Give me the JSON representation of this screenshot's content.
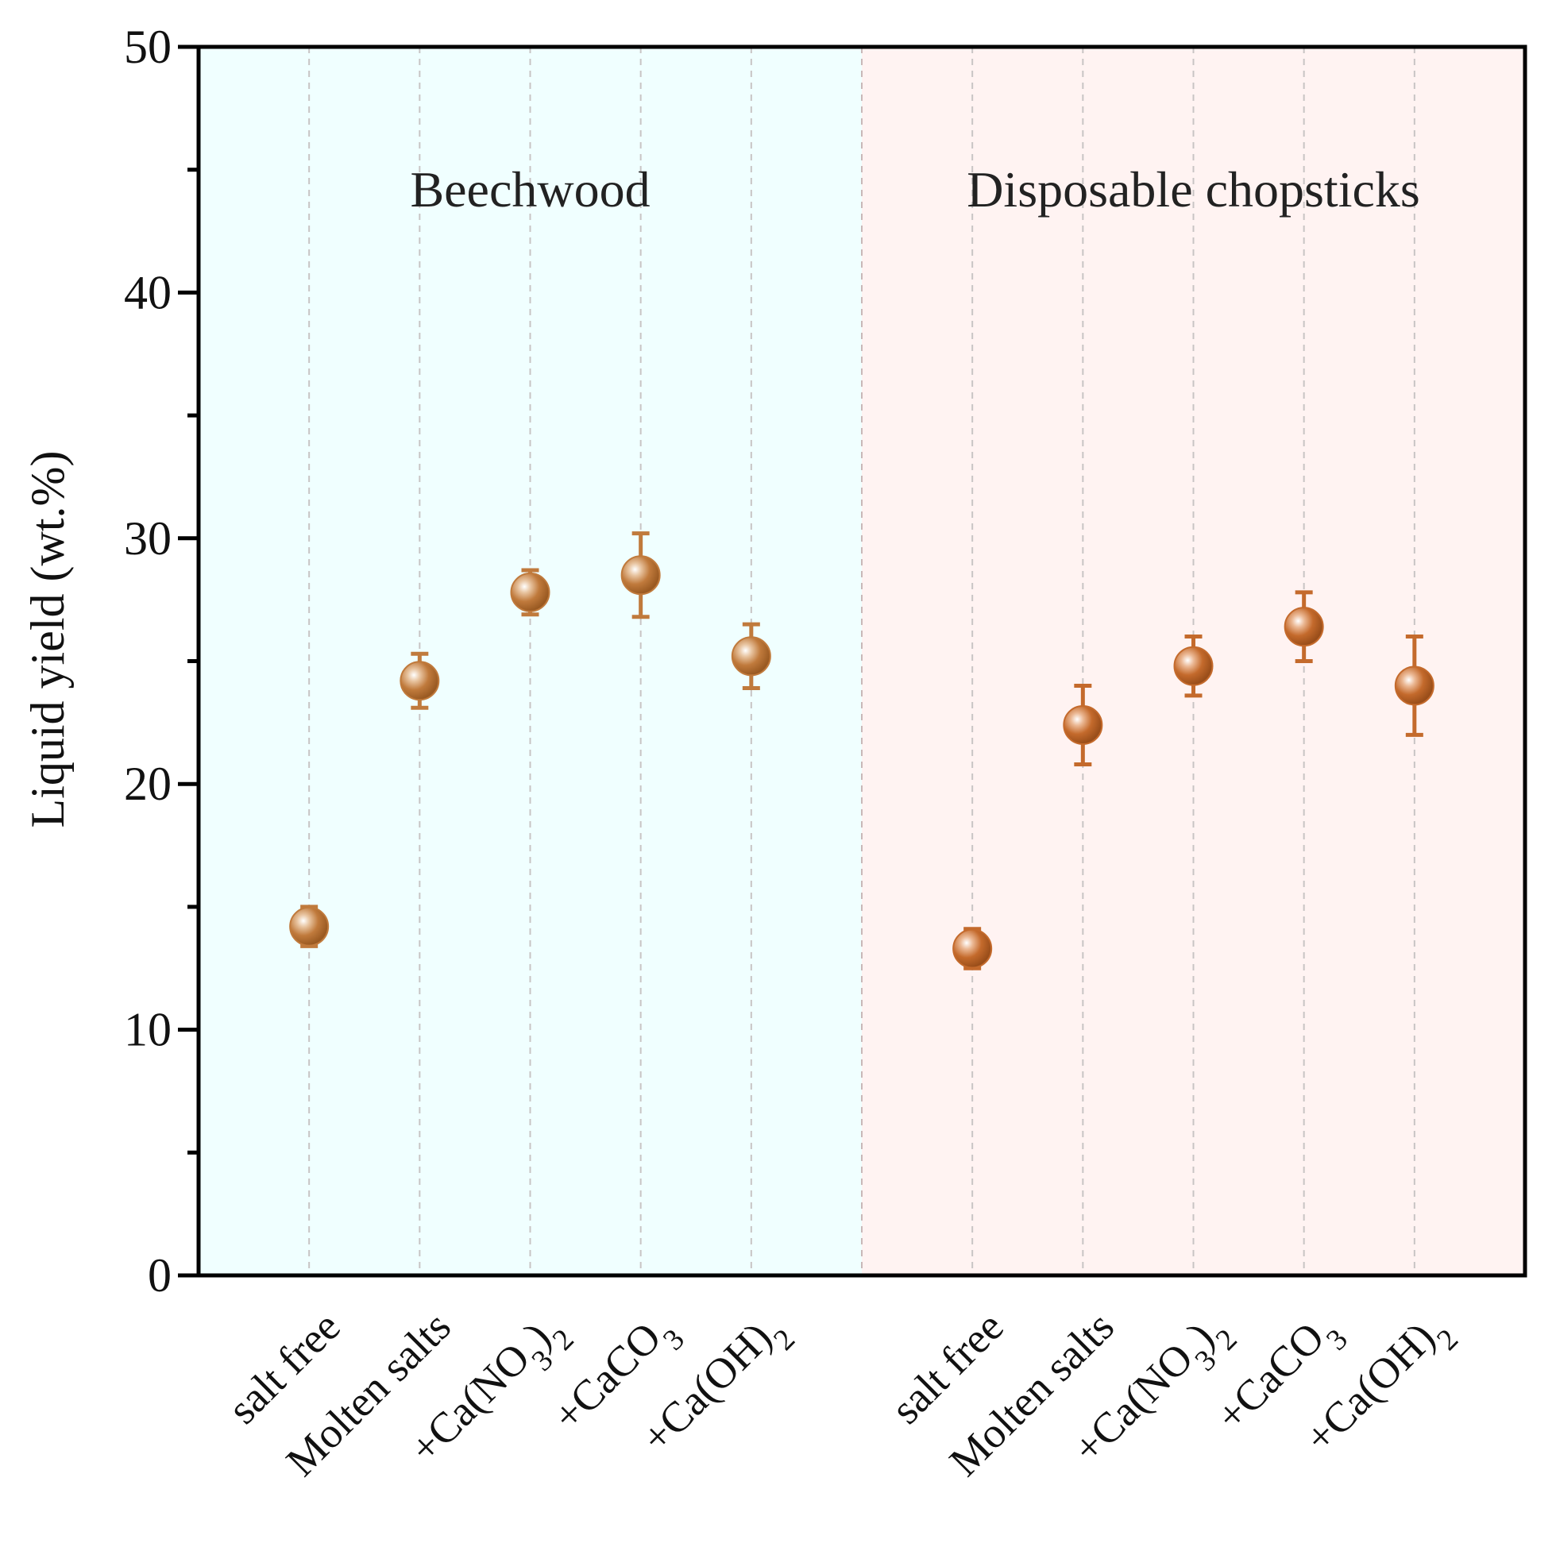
{
  "chart_data": {
    "type": "scatter",
    "ylabel": "Liquid yield (wt.%)",
    "ylim": [
      0,
      50
    ],
    "yticks": [
      0,
      10,
      20,
      30,
      40,
      50
    ],
    "yminor_step": 5,
    "grid": "vertical dashed lines at each category",
    "groups": [
      {
        "name": "Beechwood",
        "background": "#f0ffff",
        "marker_color": "#c07a3c",
        "categories": [
          {
            "label": "salt free"
          },
          {
            "label": "Molten salts"
          },
          {
            "label": "+Ca(NO",
            "sub": "3",
            "label_tail": ")",
            "sub2": "2"
          },
          {
            "label": "+CaCO",
            "sub": "3"
          },
          {
            "label": "+Ca(OH)",
            "sub": "2"
          }
        ],
        "values": [
          14.2,
          24.2,
          27.8,
          28.5,
          25.2
        ],
        "errors": [
          0.8,
          1.1,
          0.9,
          1.7,
          1.3
        ]
      },
      {
        "name": "Disposable chopsticks",
        "background": "#fff3f2",
        "marker_color": "#c46a2c",
        "categories": [
          {
            "label": "salt free"
          },
          {
            "label": "Molten salts"
          },
          {
            "label": "+Ca(NO",
            "sub": "3",
            "label_tail": ")",
            "sub2": "2"
          },
          {
            "label": "+CaCO",
            "sub": "3"
          },
          {
            "label": "+Ca(OH)",
            "sub": "2"
          }
        ],
        "values": [
          13.3,
          22.4,
          24.8,
          26.4,
          24.0
        ],
        "errors": [
          0.8,
          1.6,
          1.2,
          1.4,
          2.0
        ]
      }
    ]
  }
}
